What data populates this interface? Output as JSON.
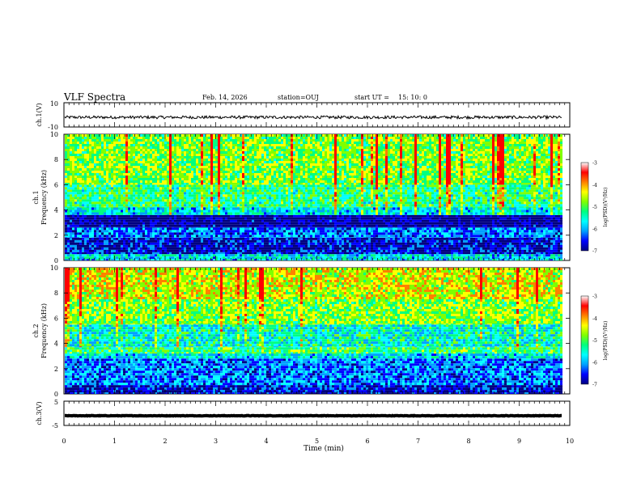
{
  "header": {
    "title": "VLF Spectra",
    "date": "Feb. 14, 2026",
    "station": "station=OUJ",
    "start_label": "start  UT =",
    "start_time": "15: 10: 0"
  },
  "chart_data": [
    {
      "type": "line",
      "panel": "ch1-waveform",
      "ylabel": "ch.1(V)",
      "ylim": [
        -10,
        10
      ],
      "ytick_labels": [
        "10",
        "-10"
      ],
      "xlim": [
        0,
        10
      ],
      "trace_level": -2,
      "trace_end_x": 9.85
    },
    {
      "type": "heatmap",
      "panel": "ch1-spectrogram",
      "ylabel_line1": "ch.1",
      "ylabel_line2": "Frequency (kHz)",
      "ylim": [
        0,
        10
      ],
      "yticks": [
        "0",
        "2",
        "4",
        "6",
        "8",
        "10"
      ],
      "xlim": [
        0,
        10
      ],
      "data_end_x": 9.85,
      "colorbar": {
        "label": "log(PSD)(V²/Hz)",
        "range": [
          -7,
          -3
        ],
        "tick_labels": [
          "-3",
          "-4",
          "-5",
          "-6",
          "-7"
        ]
      },
      "bands_khz": [
        {
          "from": 0,
          "to": 0.5,
          "level": -5.5
        },
        {
          "from": 0.5,
          "to": 1.8,
          "level": -6.5
        },
        {
          "from": 1.8,
          "to": 2.6,
          "level": -6.0
        },
        {
          "from": 2.6,
          "to": 3.6,
          "level": -6.8
        },
        {
          "from": 3.6,
          "to": 4.2,
          "level": -5.5
        },
        {
          "from": 4.2,
          "to": 6.0,
          "level": -5.0
        },
        {
          "from": 6.0,
          "to": 10,
          "level": -4.6
        }
      ]
    },
    {
      "type": "heatmap",
      "panel": "ch2-spectrogram",
      "ylabel_line1": "ch.2",
      "ylabel_line2": "Frequency (kHz)",
      "ylim": [
        0,
        10
      ],
      "yticks": [
        "0",
        "2",
        "4",
        "6",
        "8",
        "10"
      ],
      "xlim": [
        0,
        10
      ],
      "data_end_x": 9.85,
      "colorbar": {
        "label": "log(PSD)(V²/Hz)",
        "range": [
          -7,
          -3
        ],
        "tick_labels": [
          "-3",
          "-4",
          "-5",
          "-6",
          "-7"
        ]
      },
      "bands_khz": [
        {
          "from": 0,
          "to": 0.7,
          "level": -6.5
        },
        {
          "from": 0.7,
          "to": 2.8,
          "level": -6.0
        },
        {
          "from": 2.8,
          "to": 3.2,
          "level": -5.5
        },
        {
          "from": 3.2,
          "to": 3.7,
          "level": -4.9
        },
        {
          "from": 3.7,
          "to": 5.5,
          "level": -5.3
        },
        {
          "from": 5.5,
          "to": 7.5,
          "level": -4.6
        },
        {
          "from": 7.5,
          "to": 10,
          "level": -4.2
        }
      ]
    },
    {
      "type": "line",
      "panel": "ch3-waveform",
      "ylabel": "ch.3(V)",
      "ylim": [
        -5,
        5
      ],
      "ytick_labels": [
        "5",
        "-5"
      ],
      "xlim": [
        0,
        10
      ],
      "trace_level": -1,
      "trace_end_x": 9.85
    }
  ],
  "xaxis": {
    "label": "Time (min)",
    "ticks": [
      "0",
      "1",
      "2",
      "3",
      "4",
      "5",
      "6",
      "7",
      "8",
      "9",
      "10"
    ]
  },
  "colors": {
    "scale": [
      "#000080",
      "#0000ff",
      "#00a0ff",
      "#00ffff",
      "#00ff80",
      "#80ff00",
      "#ffff00",
      "#ff8000",
      "#ff0000",
      "#ffffff"
    ],
    "axis": "#000000"
  }
}
